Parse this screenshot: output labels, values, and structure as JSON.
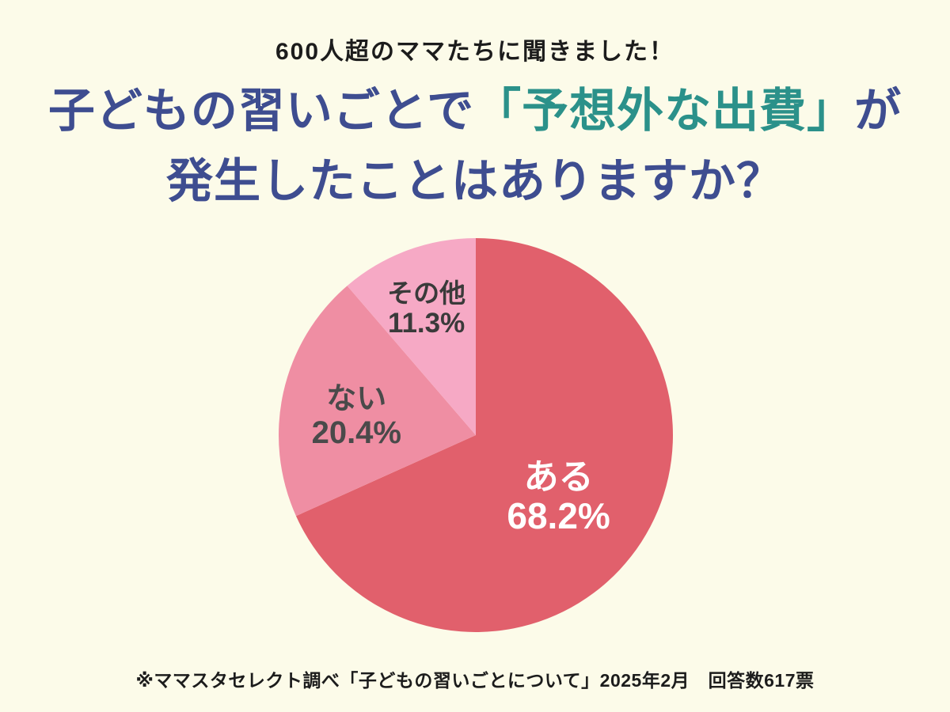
{
  "page": {
    "background_color": "#FCFBE9",
    "subtitle": "600人超のママたちに聞きました！",
    "title": {
      "line1_prefix": "子どもの習いごとで",
      "line1_highlight": "「予想外な出費」",
      "line1_suffix": "が",
      "line2": "発生したことはありますか？",
      "base_color": "#3E4D90",
      "highlight_color": "#2B918A"
    },
    "footnote": "※ママスタセレクト調べ「子どもの習いごとについて」2025年2月　回答数617票"
  },
  "chart_data": {
    "type": "pie",
    "title": "子どもの習いごとで「予想外な出費」が発生したことはありますか？",
    "categories": [
      "ある",
      "ない",
      "その他"
    ],
    "values": [
      68.2,
      20.4,
      11.3
    ],
    "unit": "%",
    "slice_colors": [
      "#E1606C",
      "#EF8EA3",
      "#F6A9C5"
    ],
    "label_colors": [
      "#FFFFFF",
      "#4A4A4A",
      "#3A3A3A"
    ],
    "start_angle_deg": 0,
    "direction": "clockwise",
    "labels_inside": true,
    "legend_position": "none",
    "source_note": "ママスタセレクト調べ「子どもの習いごとについて」2025年2月",
    "responses": "617票"
  }
}
